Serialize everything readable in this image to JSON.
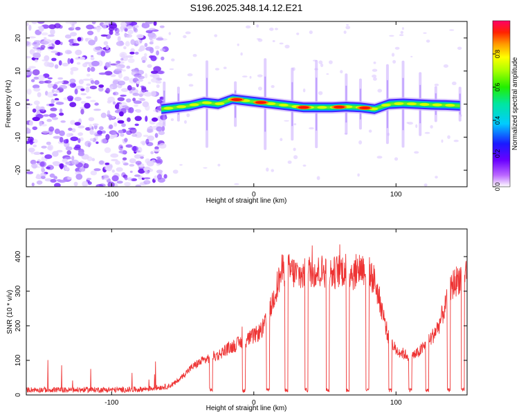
{
  "figure_title": "S196.2025.348.14.12.E21",
  "chart_data": [
    {
      "type": "heatmap",
      "title": "S196.2025.348.14.12.E21",
      "xlabel": "Height of straight line (km)",
      "ylabel": "Frequency (Hz)",
      "xlim": [
        -160,
        150
      ],
      "ylim": [
        -25,
        25
      ],
      "x_ticks": [
        -100,
        0,
        100
      ],
      "y_ticks": [
        -20,
        -10,
        0,
        10,
        20
      ],
      "colorbar": {
        "label": "Normalized spectral amplitude",
        "range": [
          0,
          1
        ],
        "ticks": [
          0.0,
          0.2,
          0.4,
          0.6,
          0.8
        ]
      },
      "noise_region_x": [
        -160,
        -65
      ],
      "signal_track": {
        "x": [
          -65,
          -55,
          -45,
          -35,
          -25,
          -15,
          -5,
          5,
          15,
          25,
          35,
          45,
          55,
          65,
          75,
          85,
          95,
          105,
          115,
          125,
          135,
          145
        ],
        "freq_hz": [
          -1.5,
          -1.0,
          -0.5,
          0.5,
          0.0,
          1.5,
          1.0,
          0.5,
          0.0,
          -0.5,
          -1.0,
          -1.0,
          -1.0,
          -0.8,
          -1.0,
          -1.5,
          0.0,
          0.2,
          0.0,
          -0.2,
          -0.3,
          -0.5
        ],
        "hot_spots_x": [
          -12,
          5,
          35,
          60,
          78
        ]
      },
      "vertical_streaks_x": [
        -63,
        -53,
        -33,
        -13,
        8,
        27,
        44,
        65,
        75,
        94,
        105,
        117,
        128,
        145
      ]
    },
    {
      "type": "line",
      "xlabel": "Height of straight line (km)",
      "ylabel": "SNR (10 * v/v)",
      "xlim": [
        -160,
        150
      ],
      "ylim": [
        0,
        480
      ],
      "x_ticks": [
        -100,
        0,
        100
      ],
      "y_ticks": [
        0,
        100,
        200,
        300,
        400
      ],
      "series": [
        {
          "name": "SNR",
          "color": "#ee3333",
          "x": [
            -160,
            -150,
            -140,
            -130,
            -120,
            -110,
            -100,
            -90,
            -80,
            -70,
            -60,
            -55,
            -50,
            -45,
            -40,
            -35,
            -30,
            -25,
            -20,
            -15,
            -10,
            -5,
            0,
            5,
            10,
            15,
            20,
            25,
            30,
            35,
            40,
            45,
            50,
            55,
            60,
            65,
            70,
            75,
            80,
            85,
            90,
            95,
            100,
            105,
            110,
            115,
            120,
            125,
            130,
            135,
            140,
            145,
            150
          ],
          "values": [
            15,
            15,
            15,
            14,
            15,
            15,
            15,
            15,
            16,
            20,
            25,
            35,
            55,
            75,
            90,
            100,
            110,
            115,
            130,
            140,
            150,
            160,
            170,
            185,
            220,
            300,
            360,
            360,
            350,
            345,
            360,
            355,
            360,
            350,
            360,
            365,
            350,
            370,
            360,
            330,
            250,
            160,
            130,
            120,
            110,
            120,
            140,
            165,
            200,
            260,
            320,
            340,
            360
          ]
        }
      ],
      "dips_x": [
        -30,
        -7,
        10,
        23,
        37,
        52,
        66,
        80,
        96,
        110,
        122,
        137,
        147
      ]
    }
  ]
}
